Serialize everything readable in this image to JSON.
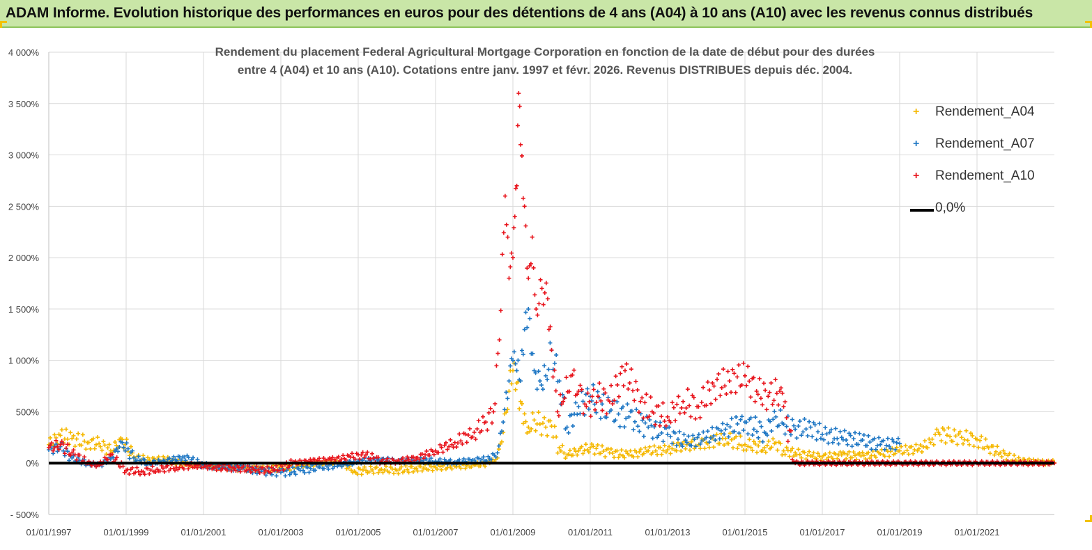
{
  "banner": {
    "title": "ADAM Informe. Evolution historique des performances en euros pour des détentions de 4 ans (A04) à 10 ans (A10) avec les revenus connus distribués"
  },
  "colors": {
    "banner_bg": "#c9e6a7",
    "a04": "#f5b800",
    "a07": "#1f77c4",
    "a10": "#e8141c",
    "zero": "#000000"
  },
  "chart_data": {
    "type": "scatter",
    "title_line1": "Rendement du placement Federal Agricultural Mortgage Corporation en fonction de la date de début pour des durées",
    "title_line2": "entre 4 (A04) et 10 ans (A10). Cotations entre janv. 1997 et févr. 2026. Revenus DISTRIBUES depuis déc. 2004.",
    "ylim": [
      -500,
      4000
    ],
    "xlim": [
      1997.0,
      2023.0
    ],
    "y_ticks": [
      {
        "value": 4000,
        "label": "4 000%"
      },
      {
        "value": 3500,
        "label": "3 500%"
      },
      {
        "value": 3000,
        "label": "3 000%"
      },
      {
        "value": 2500,
        "label": "2 500%"
      },
      {
        "value": 2000,
        "label": "2 000%"
      },
      {
        "value": 1500,
        "label": "1 500%"
      },
      {
        "value": 1000,
        "label": "1 000%"
      },
      {
        "value": 500,
        "label": "500%"
      },
      {
        "value": 0,
        "label": "0%"
      },
      {
        "value": -500,
        "label": "- 500%"
      }
    ],
    "x_ticks": [
      {
        "value": 1997.0,
        "label": "01/01/1997"
      },
      {
        "value": 1999.0,
        "label": "01/01/1999"
      },
      {
        "value": 2001.0,
        "label": "01/01/2001"
      },
      {
        "value": 2003.0,
        "label": "01/01/2003"
      },
      {
        "value": 2005.0,
        "label": "01/01/2005"
      },
      {
        "value": 2007.0,
        "label": "01/01/2007"
      },
      {
        "value": 2009.0,
        "label": "01/01/2009"
      },
      {
        "value": 2011.0,
        "label": "01/01/2011"
      },
      {
        "value": 2013.0,
        "label": "01/01/2013"
      },
      {
        "value": 2015.0,
        "label": "01/01/2015"
      },
      {
        "value": 2017.0,
        "label": "01/01/2017"
      },
      {
        "value": 2019.0,
        "label": "01/01/2019"
      },
      {
        "value": 2021.0,
        "label": "01/01/2021"
      }
    ],
    "legend": [
      {
        "name": "Rendement_A04",
        "marker": "+",
        "color": "#f5b800"
      },
      {
        "name": "Rendement_A07",
        "marker": "+",
        "color": "#1f77c4"
      },
      {
        "name": "Rendement_A10",
        "marker": "+",
        "color": "#e8141c"
      },
      {
        "name": "0,0%",
        "marker": "line",
        "color": "#000000"
      }
    ],
    "series": [
      {
        "name": "Rendement_A04",
        "color": "#f5b800",
        "x": [
          1997.0,
          1997.3,
          1997.6,
          1998.0,
          1998.3,
          1998.6,
          1998.9,
          1999.2,
          1999.6,
          2000.0,
          2000.5,
          2001.0,
          2001.5,
          2002.0,
          2002.5,
          2003.0,
          2003.5,
          2004.0,
          2004.5,
          2004.9,
          2005.2,
          2005.6,
          2006.0,
          2006.5,
          2007.0,
          2007.5,
          2008.0,
          2008.4,
          2008.6,
          2008.75,
          2008.9,
          2009.0,
          2009.1,
          2009.2,
          2009.3,
          2009.4,
          2009.55,
          2009.7,
          2009.85,
          2010.0,
          2010.2,
          2010.4,
          2010.7,
          2011.0,
          2011.5,
          2012.0,
          2012.5,
          2013.0,
          2013.5,
          2014.0,
          2014.5,
          2015.0,
          2015.5,
          2015.8,
          2016.0,
          2016.3,
          2016.7,
          2017.0,
          2017.5,
          2018.0,
          2018.5,
          2019.0,
          2019.5,
          2019.8,
          2020.0,
          2020.3,
          2020.6,
          2021.0,
          2021.3,
          2021.6,
          2022.0,
          2022.5,
          2023.0
        ],
        "y": [
          180,
          270,
          240,
          200,
          190,
          120,
          230,
          60,
          30,
          40,
          -10,
          -20,
          -40,
          -50,
          -60,
          -50,
          -20,
          0,
          10,
          -80,
          -70,
          -60,
          -70,
          -50,
          -40,
          -30,
          -20,
          0,
          50,
          300,
          700,
          900,
          780,
          600,
          480,
          350,
          420,
          380,
          350,
          360,
          150,
          80,
          120,
          150,
          100,
          80,
          120,
          130,
          180,
          200,
          240,
          180,
          150,
          200,
          120,
          100,
          70,
          60,
          80,
          70,
          90,
          120,
          140,
          200,
          300,
          260,
          250,
          230,
          150,
          100,
          30,
          10,
          5
        ]
      },
      {
        "name": "Rendement_A07",
        "color": "#1f77c4",
        "x": [
          1997.0,
          1997.3,
          1997.6,
          1998.0,
          1998.3,
          1998.6,
          1998.9,
          1999.2,
          1999.6,
          2000.0,
          2000.5,
          2001.0,
          2001.5,
          2002.0,
          2002.5,
          2003.0,
          2003.5,
          2004.0,
          2004.5,
          2005.0,
          2005.5,
          2006.0,
          2006.5,
          2007.0,
          2007.5,
          2008.0,
          2008.4,
          2008.6,
          2008.75,
          2008.9,
          2009.0,
          2009.1,
          2009.2,
          2009.3,
          2009.4,
          2009.55,
          2009.7,
          2009.85,
          2010.0,
          2010.2,
          2010.4,
          2010.7,
          2011.0,
          2011.5,
          2012.0,
          2012.5,
          2013.0,
          2013.5,
          2014.0,
          2014.5,
          2015.0,
          2015.5,
          2015.8,
          2016.0,
          2016.3,
          2016.7,
          2017.0,
          2017.5,
          2018.0,
          2018.5,
          2019.0
        ],
        "y": [
          130,
          160,
          50,
          0,
          -20,
          40,
          200,
          50,
          0,
          20,
          60,
          -20,
          -40,
          -50,
          -80,
          -90,
          -70,
          -40,
          -20,
          20,
          30,
          20,
          30,
          20,
          10,
          30,
          40,
          100,
          400,
          800,
          1000,
          900,
          800,
          1300,
          1500,
          900,
          800,
          850,
          1100,
          800,
          350,
          550,
          650,
          500,
          450,
          350,
          280,
          200,
          250,
          330,
          400,
          300,
          450,
          380,
          330,
          350,
          280,
          250,
          220,
          180,
          190
        ]
      },
      {
        "name": "Rendement_A10",
        "color": "#e8141c",
        "x": [
          1997.0,
          1997.3,
          1997.6,
          1998.0,
          1998.3,
          1998.6,
          1999.0,
          1999.4,
          1999.8,
          2000.3,
          2000.8,
          2001.3,
          2001.8,
          2002.3,
          2002.8,
          2003.3,
          2003.8,
          2004.3,
          2004.8,
          2005.2,
          2005.6,
          2006.0,
          2006.5,
          2007.0,
          2007.5,
          2008.0,
          2008.3,
          2008.5,
          2008.65,
          2008.8,
          2008.9,
          2009.0,
          2009.05,
          2009.1,
          2009.15,
          2009.2,
          2009.3,
          2009.4,
          2009.5,
          2009.6,
          2009.75,
          2009.9,
          2010.0,
          2010.15,
          2010.3,
          2010.5,
          2010.7,
          2010.9,
          2011.2,
          2011.5,
          2011.9,
          2012.3,
          2012.6,
          2013.0,
          2013.4,
          2013.8,
          2014.2,
          2014.6,
          2015.0,
          2015.3,
          2015.6,
          2015.9,
          2016.0,
          2016.3,
          2016.7,
          2017.0,
          2018.0,
          2019.0,
          2020.0,
          2021.0,
          2022.0,
          2023.0
        ],
        "y": [
          150,
          180,
          100,
          0,
          -20,
          80,
          -70,
          -80,
          -60,
          -40,
          -20,
          -40,
          -50,
          -60,
          -70,
          0,
          20,
          30,
          60,
          80,
          20,
          20,
          50,
          120,
          200,
          300,
          400,
          500,
          1200,
          2600,
          1800,
          2000,
          2400,
          2700,
          3600,
          3100,
          2500,
          1800,
          2200,
          1500,
          1700,
          1600,
          1100,
          500,
          600,
          850,
          700,
          550,
          650,
          600,
          900,
          600,
          500,
          450,
          600,
          550,
          750,
          800,
          850,
          700,
          650,
          700,
          550,
          0,
          0,
          0,
          0,
          0,
          0,
          0,
          0,
          0
        ]
      }
    ]
  }
}
